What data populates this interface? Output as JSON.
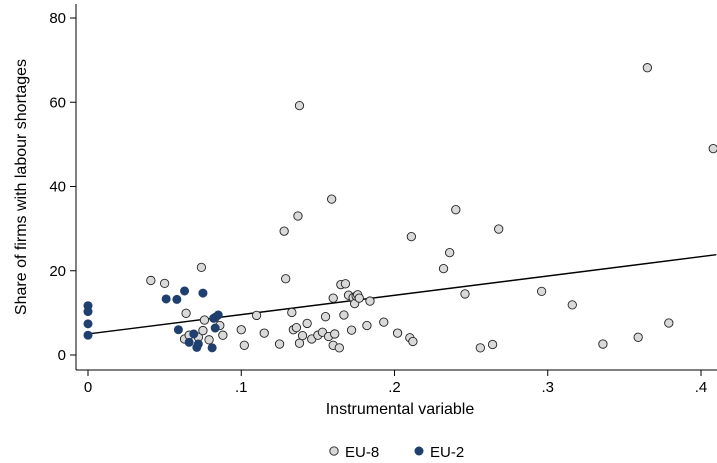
{
  "chart_data": {
    "type": "scatter",
    "title": "",
    "xlabel": "Instrumental variable",
    "ylabel": "Share of firms with labour shortages",
    "xlim": [
      -0.01,
      0.41
    ],
    "ylim": [
      -3,
      82
    ],
    "x_ticks": [
      0,
      0.1,
      0.2,
      0.3,
      0.4
    ],
    "x_tick_labels": [
      "0",
      ".1",
      ".2",
      ".3",
      ".4"
    ],
    "y_ticks": [
      0,
      20,
      40,
      60,
      80
    ],
    "y_tick_labels": [
      "0",
      "20",
      "40",
      "60",
      "80"
    ],
    "grid": false,
    "legend_position": "bottom",
    "fit_line": {
      "x": [
        0,
        0.41
      ],
      "y": [
        5.0,
        23.8
      ]
    },
    "series": [
      {
        "name": "EU-8",
        "color": "#d9d9d9",
        "points": [
          [
            0.041,
            17.7
          ],
          [
            0.05,
            17.0
          ],
          [
            0.064,
            9.9
          ],
          [
            0.074,
            20.8
          ],
          [
            0.076,
            8.3
          ],
          [
            0.079,
            3.6
          ],
          [
            0.063,
            3.8
          ],
          [
            0.066,
            4.7
          ],
          [
            0.072,
            4.2
          ],
          [
            0.075,
            5.8
          ],
          [
            0.083,
            8.9
          ],
          [
            0.086,
            7.0
          ],
          [
            0.088,
            4.7
          ],
          [
            0.1,
            6.0
          ],
          [
            0.102,
            2.3
          ],
          [
            0.11,
            9.4
          ],
          [
            0.115,
            5.2
          ],
          [
            0.125,
            2.6
          ],
          [
            0.128,
            29.4
          ],
          [
            0.129,
            18.1
          ],
          [
            0.133,
            10.1
          ],
          [
            0.134,
            6.0
          ],
          [
            0.136,
            6.5
          ],
          [
            0.137,
            33.0
          ],
          [
            0.138,
            59.2
          ],
          [
            0.138,
            2.8
          ],
          [
            0.14,
            4.6
          ],
          [
            0.143,
            7.5
          ],
          [
            0.146,
            3.8
          ],
          [
            0.15,
            4.7
          ],
          [
            0.153,
            5.4
          ],
          [
            0.155,
            9.1
          ],
          [
            0.157,
            4.4
          ],
          [
            0.159,
            37.0
          ],
          [
            0.16,
            2.3
          ],
          [
            0.16,
            13.5
          ],
          [
            0.161,
            5.0
          ],
          [
            0.164,
            1.7
          ],
          [
            0.165,
            16.7
          ],
          [
            0.167,
            9.5
          ],
          [
            0.168,
            16.9
          ],
          [
            0.17,
            14.2
          ],
          [
            0.172,
            5.9
          ],
          [
            0.173,
            13.6
          ],
          [
            0.174,
            12.2
          ],
          [
            0.175,
            14.0
          ],
          [
            0.176,
            14.3
          ],
          [
            0.177,
            13.5
          ],
          [
            0.182,
            7.0
          ],
          [
            0.184,
            12.8
          ],
          [
            0.193,
            7.8
          ],
          [
            0.202,
            5.2
          ],
          [
            0.21,
            4.1
          ],
          [
            0.211,
            28.1
          ],
          [
            0.212,
            3.2
          ],
          [
            0.232,
            20.5
          ],
          [
            0.236,
            24.3
          ],
          [
            0.24,
            34.5
          ],
          [
            0.246,
            14.5
          ],
          [
            0.256,
            1.7
          ],
          [
            0.264,
            2.5
          ],
          [
            0.268,
            29.9
          ],
          [
            0.296,
            15.1
          ],
          [
            0.316,
            11.9
          ],
          [
            0.336,
            2.6
          ],
          [
            0.359,
            4.2
          ],
          [
            0.365,
            68.2
          ],
          [
            0.379,
            7.6
          ],
          [
            0.408,
            49.0
          ]
        ]
      },
      {
        "name": "EU-2",
        "color": "#1f3f6e",
        "points": [
          [
            0.0,
            11.7
          ],
          [
            0.0,
            10.3
          ],
          [
            0.0,
            7.4
          ],
          [
            0.0,
            4.7
          ],
          [
            0.051,
            13.3
          ],
          [
            0.058,
            13.2
          ],
          [
            0.059,
            6.0
          ],
          [
            0.063,
            15.2
          ],
          [
            0.066,
            3.0
          ],
          [
            0.069,
            5.0
          ],
          [
            0.071,
            1.8
          ],
          [
            0.072,
            2.6
          ],
          [
            0.075,
            14.7
          ],
          [
            0.081,
            1.7
          ],
          [
            0.082,
            8.7
          ],
          [
            0.083,
            6.4
          ],
          [
            0.085,
            9.5
          ]
        ]
      }
    ]
  }
}
